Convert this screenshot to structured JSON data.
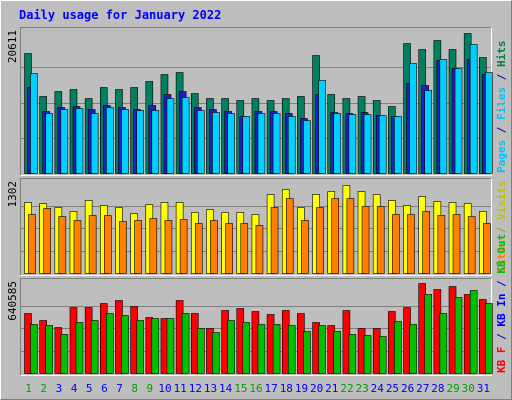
{
  "chart_data": {
    "type": "bar",
    "title": "Daily usage for January 2022",
    "days": [
      "1",
      "2",
      "3",
      "4",
      "5",
      "6",
      "7",
      "8",
      "9",
      "10",
      "11",
      "12",
      "13",
      "14",
      "15",
      "16",
      "17",
      "18",
      "19",
      "20",
      "21",
      "22",
      "23",
      "24",
      "25",
      "26",
      "27",
      "28",
      "29",
      "30",
      "31"
    ],
    "weekend_days": [
      "1",
      "2",
      "8",
      "9",
      "15",
      "16",
      "22",
      "23",
      "29",
      "30"
    ],
    "panels": [
      {
        "name": "hits-files-pages",
        "ymax": 20611,
        "ymax_label": "20611",
        "side_label_parts": [
          {
            "text": "Pages",
            "color": "#00c0ff"
          },
          {
            "text": " / ",
            "color": "#0000c0"
          },
          {
            "text": "Files",
            "color": "#00c0ff"
          },
          {
            "text": " / ",
            "color": "#0000c0"
          },
          {
            "text": "Hits",
            "color": "#008040"
          }
        ],
        "series": [
          {
            "name": "Hits",
            "color": "#008060",
            "values": [
              17600,
              11200,
              12000,
              12300,
              11000,
              12500,
              12300,
              12500,
              13500,
              14500,
              14800,
              11700,
              11000,
              11000,
              10700,
              10900,
              10700,
              10900,
              11200,
              17200,
              11500,
              11000,
              11300,
              10600,
              9800,
              19000,
              18100,
              19500,
              18100,
              20400,
              17000
            ]
          },
          {
            "name": "Files",
            "color": "#2020c0",
            "values": [
              12600,
              9100,
              9600,
              9800,
              9300,
              10000,
              9600,
              9400,
              9900,
              11500,
              12000,
              9600,
              9300,
              9000,
              8400,
              9000,
              9000,
              8700,
              8000,
              11500,
              8900,
              8800,
              8900,
              8500,
              8300,
              13200,
              12800,
              16500,
              15300,
              16700,
              14500
            ]
          },
          {
            "name": "Pages",
            "color": "#00d0ff",
            "values": [
              14600,
              8800,
              9400,
              9500,
              8800,
              9600,
              9300,
              9200,
              9200,
              11000,
              11100,
              9200,
              8900,
              8800,
              8300,
              8700,
              8800,
              8300,
              7800,
              13600,
              8700,
              8600,
              8600,
              8500,
              8300,
              16100,
              12100,
              16600,
              15300,
              18900,
              14800
            ]
          }
        ]
      },
      {
        "name": "visits-sites",
        "ymax": 1302,
        "ymax_label": "1302",
        "side_label_parts": [
          {
            "text": "Sites",
            "color": "#ff8000"
          },
          {
            "text": " / ",
            "color": "#a0a000"
          },
          {
            "text": "Visits",
            "color": "#c0c000"
          }
        ],
        "series": [
          {
            "name": "Visits",
            "color": "#ffff00",
            "values": [
              1030,
              1010,
              960,
              890,
              1060,
              980,
              950,
              870,
              1000,
              1030,
              1030,
              880,
              930,
              880,
              880,
              860,
              1150,
              1210,
              950,
              1140,
              1180,
              1280,
              1190,
              1140,
              1060,
              990,
              1110,
              1040,
              1030,
              1010,
              900
            ]
          },
          {
            "name": "Sites",
            "color": "#ff8000",
            "values": [
              850,
              940,
              830,
              760,
              840,
              840,
              750,
              760,
              790,
              770,
              780,
              730,
              760,
              720,
              720,
              700,
              960,
              1090,
              760,
              960,
              1080,
              1090,
              970,
              970,
              850,
              850,
              900,
              840,
              850,
              820,
              730
            ]
          }
        ]
      },
      {
        "name": "kbytes",
        "ymax": 640585,
        "ymax_label": "640585",
        "side_label_parts": [
          {
            "text": "KB F",
            "color": "#ff0000"
          },
          {
            "text": " / ",
            "color": "#0000c0"
          },
          {
            "text": "KB In",
            "color": "#0000ff"
          },
          {
            "text": " / ",
            "color": "#0000c0"
          },
          {
            "text": "KB Out",
            "color": "#00c000"
          }
        ],
        "series": [
          {
            "name": "KB F",
            "color": "#ff0000",
            "values": [
              430000,
              380000,
              330000,
              470000,
              470000,
              500000,
              520000,
              480000,
              400000,
              390000,
              520000,
              430000,
              320000,
              450000,
              460000,
              440000,
              420000,
              450000,
              430000,
              360000,
              340000,
              450000,
              320000,
              320000,
              440000,
              470000,
              640000,
              600000,
              620000,
              560000,
              530000
            ]
          },
          {
            "name": "KB In",
            "color": "#0000ff",
            "values": [
              0,
              0,
              0,
              0,
              0,
              0,
              0,
              0,
              0,
              0,
              0,
              0,
              0,
              0,
              0,
              0,
              0,
              0,
              0,
              0,
              0,
              0,
              0,
              0,
              0,
              0,
              0,
              0,
              0,
              0,
              0
            ]
          },
          {
            "name": "KB Out",
            "color": "#00c000",
            "values": [
              350000,
              340000,
              280000,
              360000,
              380000,
              430000,
              410000,
              380000,
              390000,
              390000,
              430000,
              320000,
              290000,
              380000,
              360000,
              350000,
              350000,
              340000,
              300000,
              340000,
              300000,
              280000,
              270000,
              260000,
              370000,
              350000,
              560000,
              430000,
              540000,
              590000,
              500000
            ]
          }
        ]
      }
    ],
    "colors": {
      "background": "#bebebe",
      "frame_light": "#ffffff",
      "frame_dark": "#7f7f7f",
      "title": "#0000ff",
      "axis_label": "#000000",
      "gridline": "#808080",
      "weekday_tick": "#0000ff",
      "weekend_tick": "#00a000",
      "bar_outline": "#000000"
    }
  }
}
